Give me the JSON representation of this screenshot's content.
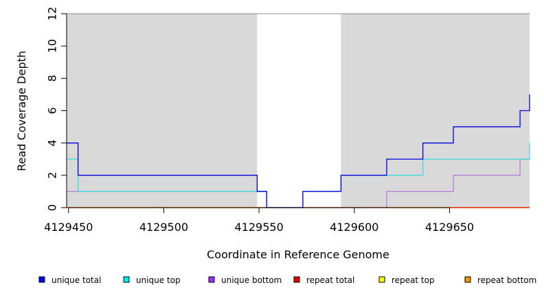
{
  "chart_data": {
    "type": "line",
    "step": true,
    "title": "",
    "xlabel": "Coordinate in Reference Genome",
    "ylabel": "Read Coverage Depth",
    "xlim": [
      4129449,
      4129692
    ],
    "ylim": [
      0,
      12
    ],
    "x_ticks": [
      4129450,
      4129500,
      4129550,
      4129600,
      4129650
    ],
    "x_tick_labels": [
      "4129450",
      "4129500",
      "4129550",
      "4129600",
      "4129650"
    ],
    "y_ticks": [
      0,
      2,
      4,
      6,
      8,
      10,
      12
    ],
    "y_tick_labels": [
      "0",
      "2",
      "4",
      "6",
      "8",
      "10",
      "12"
    ],
    "shaded_regions": [
      [
        4129449,
        4129549
      ],
      [
        4129593,
        4129692
      ]
    ],
    "shaded_color": "#d9d9d9",
    "legend_placement": "bottom",
    "series": [
      {
        "name": "unique total",
        "color": "#0000dd",
        "x": [
          4129449,
          4129455,
          4129549,
          4129554,
          4129573,
          4129593,
          4129617,
          4129636,
          4129652,
          4129687,
          4129692
        ],
        "values": [
          4,
          2,
          1,
          0,
          1,
          2,
          3,
          4,
          5,
          6,
          7
        ]
      },
      {
        "name": "unique top",
        "color": "#33dddd",
        "x": [
          4129449,
          4129455,
          4129549,
          4129554,
          4129573,
          4129593,
          4129617,
          4129636,
          4129692
        ],
        "values": [
          3,
          1,
          1,
          0,
          1,
          2,
          2,
          3,
          4
        ]
      },
      {
        "name": "unique bottom",
        "color": "#b57edc",
        "x": [
          4129449,
          4129549,
          4129554,
          4129617,
          4129652,
          4129687,
          4129692
        ],
        "values": [
          1,
          1,
          0,
          1,
          2,
          3,
          3
        ]
      },
      {
        "name": "repeat total",
        "color": "#dd0000",
        "x": [
          4129449,
          4129692
        ],
        "values": [
          0,
          0
        ]
      },
      {
        "name": "repeat top",
        "color": "#eeee00",
        "x": [
          4129449,
          4129692
        ],
        "values": [
          0,
          0
        ]
      },
      {
        "name": "repeat bottom",
        "color": "#ff9900",
        "x": [
          4129449,
          4129692
        ],
        "values": [
          0,
          0
        ]
      }
    ],
    "legend": [
      {
        "label": "unique total",
        "fill": "#0000ee"
      },
      {
        "label": "unique top",
        "fill": "#00eeee"
      },
      {
        "label": "unique bottom",
        "fill": "#9933ee"
      },
      {
        "label": "repeat total",
        "fill": "#ee0000"
      },
      {
        "label": "repeat top",
        "fill": "#ffff00"
      },
      {
        "label": "repeat bottom",
        "fill": "#ee9900"
      }
    ]
  }
}
